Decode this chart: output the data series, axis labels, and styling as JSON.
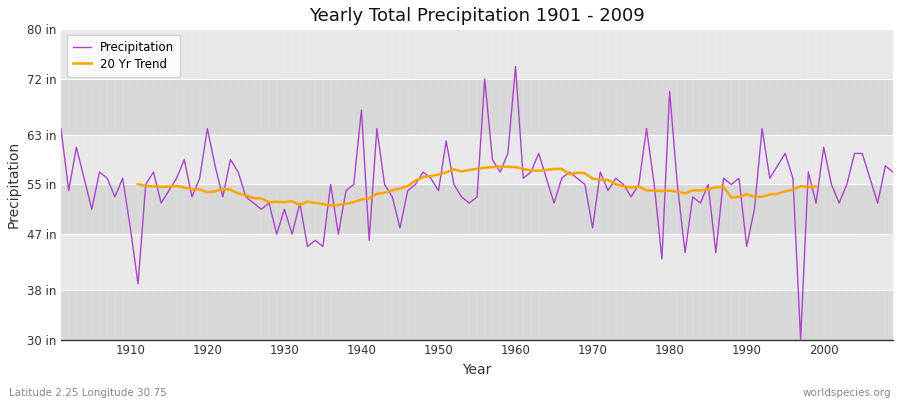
{
  "title": "Yearly Total Precipitation 1901 - 2009",
  "xlabel": "Year",
  "ylabel": "Precipitation",
  "lat_lon_label": "Latitude 2.25 Longitude 30.75",
  "source_label": "worldspecies.org",
  "ylim": [
    30,
    80
  ],
  "yticks": [
    30,
    38,
    47,
    55,
    63,
    72,
    80
  ],
  "ytick_labels": [
    "30 in",
    "38 in",
    "47 in",
    "55 in",
    "63 in",
    "72 in",
    "80 in"
  ],
  "xlim": [
    1901,
    2009
  ],
  "fig_bg_color": "#ffffff",
  "plot_bg_color": "#e8e8e8",
  "grid_color": "#ffffff",
  "precip_color": "#AA44CC",
  "trend_color": "#FFA500",
  "precip_linewidth": 1.0,
  "trend_linewidth": 1.8,
  "years": [
    1901,
    1902,
    1903,
    1904,
    1905,
    1906,
    1907,
    1908,
    1909,
    1910,
    1911,
    1912,
    1913,
    1914,
    1915,
    1916,
    1917,
    1918,
    1919,
    1920,
    1921,
    1922,
    1923,
    1924,
    1925,
    1926,
    1927,
    1928,
    1929,
    1930,
    1931,
    1932,
    1933,
    1934,
    1935,
    1936,
    1937,
    1938,
    1939,
    1940,
    1941,
    1942,
    1943,
    1944,
    1945,
    1946,
    1947,
    1948,
    1949,
    1950,
    1951,
    1952,
    1953,
    1954,
    1955,
    1956,
    1957,
    1958,
    1959,
    1960,
    1961,
    1962,
    1963,
    1964,
    1965,
    1966,
    1967,
    1968,
    1969,
    1970,
    1971,
    1972,
    1973,
    1974,
    1975,
    1976,
    1977,
    1978,
    1979,
    1980,
    1981,
    1982,
    1983,
    1984,
    1985,
    1986,
    1987,
    1988,
    1989,
    1990,
    1991,
    1992,
    1993,
    1994,
    1995,
    1996,
    1997,
    1998,
    1999,
    2000,
    2001,
    2002,
    2003,
    2004,
    2005,
    2006,
    2007,
    2008,
    2009
  ],
  "precip": [
    64,
    54,
    61,
    56,
    51,
    57,
    56,
    53,
    56,
    48,
    39,
    55,
    57,
    52,
    54,
    56,
    59,
    53,
    56,
    64,
    58,
    53,
    59,
    57,
    53,
    52,
    51,
    52,
    47,
    51,
    47,
    52,
    45,
    46,
    45,
    55,
    47,
    54,
    55,
    67,
    46,
    64,
    55,
    53,
    48,
    54,
    55,
    57,
    56,
    54,
    62,
    55,
    53,
    52,
    53,
    72,
    59,
    57,
    60,
    74,
    56,
    57,
    60,
    56,
    52,
    56,
    57,
    56,
    55,
    48,
    57,
    54,
    56,
    55,
    53,
    55,
    64,
    55,
    43,
    70,
    55,
    44,
    53,
    52,
    55,
    44,
    56,
    55,
    56,
    45,
    51,
    64,
    56,
    58,
    60,
    56,
    30,
    57,
    52,
    61,
    55,
    52,
    55,
    60,
    60,
    56,
    52,
    58,
    57
  ],
  "legend_loc": "upper left"
}
